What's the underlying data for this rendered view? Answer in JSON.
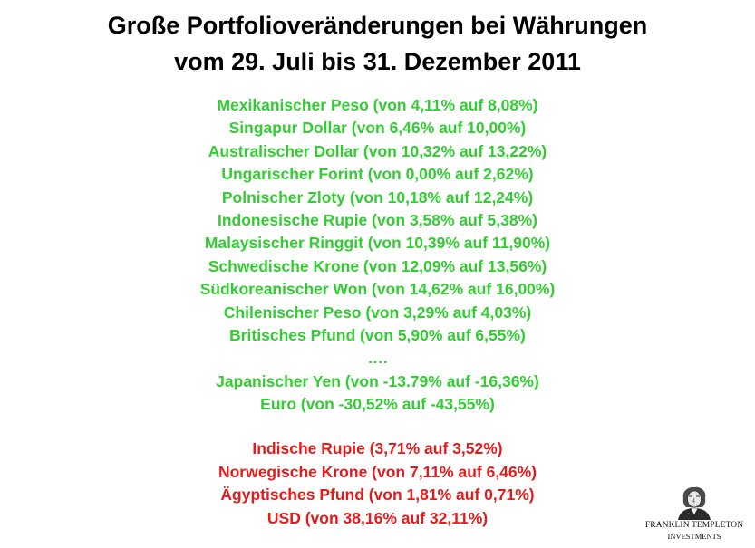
{
  "title": {
    "line1": "Große Portfolioveränderungen bei Währungen",
    "line2": "vom 29. Juli bis 31. Dezember 2011"
  },
  "colors": {
    "gains": "#33cc33",
    "losses": "#e31b1b",
    "title": "#000000"
  },
  "gains": [
    "Mexikanischer Peso (von 4,11% auf 8,08%)",
    "Singapur Dollar (von 6,46% auf 10,00%)",
    "Australischer Dollar (von 10,32% auf 13,22%)",
    "Ungarischer Forint (von 0,00% auf 2,62%)",
    "Polnischer Zloty (von 10,18% auf 12,24%)",
    "Indonesische Rupie (von 3,58% auf 5,38%)",
    "Malaysischer Ringgit (von 10,39% auf 11,90%)",
    "Schwedische Krone (von 12,09% auf 13,56%)",
    "Südkoreanischer Won (von 14,62% auf 16,00%)",
    "Chilenischer Peso (von 3,29% auf 4,03%)",
    "Britisches Pfund (von 5,90% auf 6,55%)",
    "….",
    "Japanischer Yen (von -13.79% auf -16,36%)",
    "Euro (von -30,52% auf -43,55%)"
  ],
  "losses": [
    "Indische Rupie (3,71% auf 3,52%)",
    "Norwegische Krone (von 7,11% auf 6,46%)",
    "Ägyptisches Pfund (von 1,81% auf 0,71%)",
    "USD (von 38,16% auf 32,11%)"
  ],
  "logo": {
    "icon": "benjamin-franklin-portrait-icon",
    "name": "FRANKLIN TEMPLETON",
    "sub": "INVESTMENTS"
  }
}
